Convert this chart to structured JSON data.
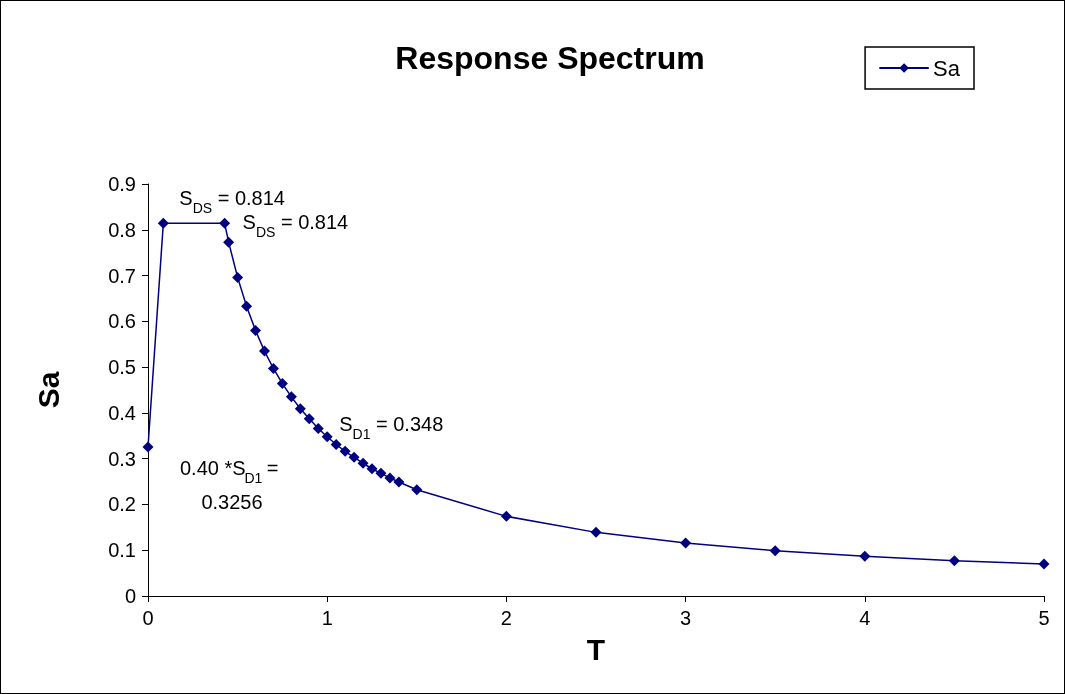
{
  "chart_data": {
    "type": "line",
    "title": "Response Spectrum",
    "xlabel": "T",
    "ylabel": "Sa",
    "x": [
      0,
      0.0855,
      0.4275,
      0.45,
      0.5,
      0.55,
      0.6,
      0.65,
      0.7,
      0.75,
      0.8,
      0.85,
      0.9,
      0.95,
      1.0,
      1.05,
      1.1,
      1.15,
      1.2,
      1.25,
      1.3,
      1.35,
      1.4,
      1.5,
      2,
      2.5,
      3,
      3.5,
      4,
      4.5,
      5
    ],
    "series": [
      {
        "name": "Sa",
        "color": "#000080",
        "values": [
          0.3256,
          0.814,
          0.814,
          0.773,
          0.696,
          0.633,
          0.58,
          0.535,
          0.497,
          0.464,
          0.435,
          0.409,
          0.387,
          0.366,
          0.348,
          0.331,
          0.316,
          0.303,
          0.29,
          0.278,
          0.268,
          0.258,
          0.249,
          0.232,
          0.174,
          0.139,
          0.116,
          0.099,
          0.087,
          0.077,
          0.07
        ]
      }
    ],
    "xlim": [
      0,
      5
    ],
    "xticks": [
      0,
      1,
      2,
      3,
      4,
      5
    ],
    "ylim": [
      0,
      0.9
    ],
    "yticks": [
      0,
      0.1,
      0.2,
      0.3,
      0.4,
      0.5,
      0.6,
      0.7,
      0.8,
      0.9
    ],
    "grid": false,
    "legend": "top right",
    "marker": "diamond",
    "line_style": "solid",
    "annotations": [
      {
        "text": "S$_{DS}$ = 0.814",
        "x": 0.0855,
        "y": 0.814
      },
      {
        "text": "S$_{DS}$ = 0.814",
        "x": 0.4275,
        "y": 0.814
      },
      {
        "text": "S$_{D1}$ = 0.348",
        "x": 1.0,
        "y": 0.348
      },
      {
        "text": "0.40 *S$_{D1}$ = 0.3256",
        "x": 0,
        "y": 0.3256
      }
    ]
  }
}
